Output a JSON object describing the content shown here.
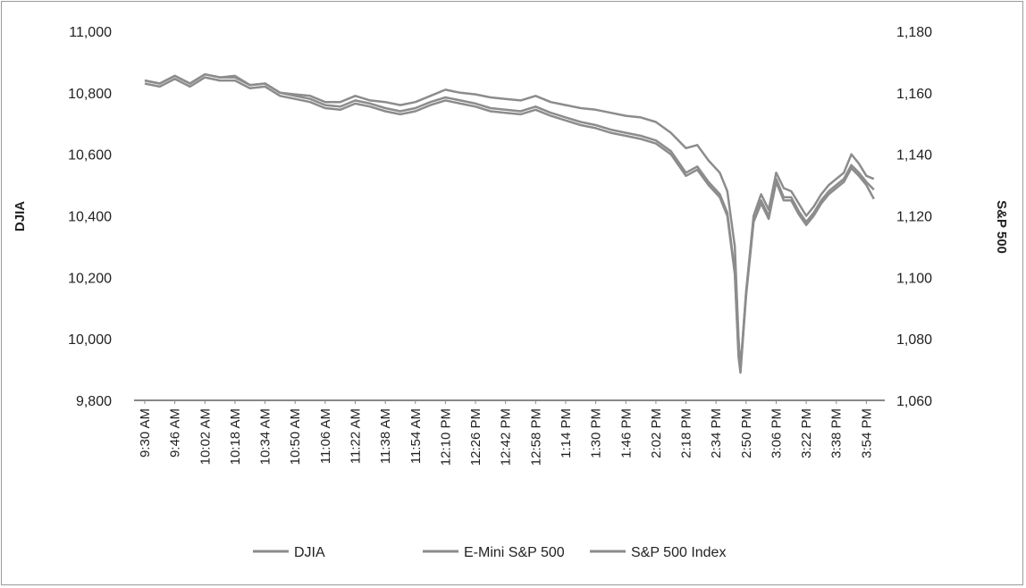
{
  "chart_data": {
    "type": "line",
    "title": "",
    "left_axis_label": "DJIA",
    "right_axis_label": "S&P 500",
    "left_ylim": [
      9800,
      11000
    ],
    "right_ylim": [
      1060,
      1180
    ],
    "left_ticks": [
      "9,800",
      "10,000",
      "10,200",
      "10,400",
      "10,600",
      "10,800",
      "11,000"
    ],
    "right_ticks": [
      "1,060",
      "1,080",
      "1,100",
      "1,120",
      "1,140",
      "1,160",
      "1,180"
    ],
    "x_ticks": [
      "9:30 AM",
      "9:46 AM",
      "10:02 AM",
      "10:18 AM",
      "10:34 AM",
      "10:50 AM",
      "11:06 AM",
      "11:22 AM",
      "11:38 AM",
      "11:54 AM",
      "12:10 PM",
      "12:26 PM",
      "12:42 PM",
      "12:58 PM",
      "1:14 PM",
      "1:30 PM",
      "1:46 PM",
      "2:02 PM",
      "2:18 PM",
      "2:34 PM",
      "2:50 PM",
      "3:06 PM",
      "3:22 PM",
      "3:38 PM",
      "3:54 PM"
    ],
    "grid": false,
    "legend_position": "bottom",
    "line_color": "#8c8c8c",
    "series": [
      {
        "name": "DJIA",
        "axis": "left",
        "points": [
          [
            "9:30 AM",
            10840
          ],
          [
            "9:38 AM",
            10830
          ],
          [
            "9:46 AM",
            10855
          ],
          [
            "9:54 AM",
            10830
          ],
          [
            "10:02 AM",
            10860
          ],
          [
            "10:10 AM",
            10850
          ],
          [
            "10:18 AM",
            10855
          ],
          [
            "10:26 AM",
            10825
          ],
          [
            "10:34 AM",
            10830
          ],
          [
            "10:42 AM",
            10800
          ],
          [
            "10:50 AM",
            10795
          ],
          [
            "10:58 AM",
            10790
          ],
          [
            "11:06 AM",
            10770
          ],
          [
            "11:14 AM",
            10770
          ],
          [
            "11:22 AM",
            10790
          ],
          [
            "11:30 AM",
            10775
          ],
          [
            "11:38 AM",
            10770
          ],
          [
            "11:46 AM",
            10760
          ],
          [
            "11:54 AM",
            10770
          ],
          [
            "12:02 PM",
            10790
          ],
          [
            "12:10 PM",
            10810
          ],
          [
            "12:18 PM",
            10800
          ],
          [
            "12:26 PM",
            10795
          ],
          [
            "12:34 PM",
            10785
          ],
          [
            "12:42 PM",
            10780
          ],
          [
            "12:50 PM",
            10775
          ],
          [
            "12:58 PM",
            10790
          ],
          [
            "1:06 PM",
            10770
          ],
          [
            "1:14 PM",
            10760
          ],
          [
            "1:22 PM",
            10750
          ],
          [
            "1:30 PM",
            10745
          ],
          [
            "1:38 PM",
            10735
          ],
          [
            "1:46 PM",
            10725
          ],
          [
            "1:54 PM",
            10720
          ],
          [
            "2:02 PM",
            10705
          ],
          [
            "2:10 PM",
            10670
          ],
          [
            "2:18 PM",
            10620
          ],
          [
            "2:24 PM",
            10630
          ],
          [
            "2:30 PM",
            10580
          ],
          [
            "2:36 PM",
            10540
          ],
          [
            "2:40 PM",
            10480
          ],
          [
            "2:44 PM",
            10300
          ],
          [
            "2:46 PM",
            10000
          ],
          [
            "2:47 PM",
            9900
          ],
          [
            "2:50 PM",
            10150
          ],
          [
            "2:54 PM",
            10400
          ],
          [
            "2:58 PM",
            10470
          ],
          [
            "3:02 PM",
            10420
          ],
          [
            "3:06 PM",
            10540
          ],
          [
            "3:10 PM",
            10490
          ],
          [
            "3:14 PM",
            10480
          ],
          [
            "3:18 PM",
            10440
          ],
          [
            "3:22 PM",
            10400
          ],
          [
            "3:26 PM",
            10430
          ],
          [
            "3:30 PM",
            10470
          ],
          [
            "3:34 PM",
            10500
          ],
          [
            "3:38 PM",
            10520
          ],
          [
            "3:42 PM",
            10540
          ],
          [
            "3:46 PM",
            10600
          ],
          [
            "3:50 PM",
            10570
          ],
          [
            "3:54 PM",
            10530
          ],
          [
            "3:58 PM",
            10520
          ]
        ]
      },
      {
        "name": "E-Mini S&P 500",
        "axis": "right",
        "points": [
          [
            "9:30 AM",
            1164
          ],
          [
            "9:38 AM",
            1163
          ],
          [
            "9:46 AM",
            1165.5
          ],
          [
            "9:54 AM",
            1163
          ],
          [
            "10:02 AM",
            1166
          ],
          [
            "10:10 AM",
            1165
          ],
          [
            "10:18 AM",
            1165
          ],
          [
            "10:26 AM",
            1162.5
          ],
          [
            "10:34 AM",
            1163
          ],
          [
            "10:42 AM",
            1160
          ],
          [
            "10:50 AM",
            1159
          ],
          [
            "10:58 AM",
            1158
          ],
          [
            "11:06 AM",
            1156
          ],
          [
            "11:14 AM",
            1155.5
          ],
          [
            "11:22 AM",
            1157.5
          ],
          [
            "11:30 AM",
            1156.5
          ],
          [
            "11:38 AM",
            1155
          ],
          [
            "11:46 AM",
            1154
          ],
          [
            "11:54 AM",
            1155
          ],
          [
            "12:02 PM",
            1157
          ],
          [
            "12:10 PM",
            1158.5
          ],
          [
            "12:18 PM",
            1157.5
          ],
          [
            "12:26 PM",
            1156.5
          ],
          [
            "12:34 PM",
            1155
          ],
          [
            "12:42 PM",
            1154.5
          ],
          [
            "12:50 PM",
            1154
          ],
          [
            "12:58 PM",
            1155.5
          ],
          [
            "1:06 PM",
            1153.5
          ],
          [
            "1:14 PM",
            1152
          ],
          [
            "1:22 PM",
            1150.5
          ],
          [
            "1:30 PM",
            1149.5
          ],
          [
            "1:38 PM",
            1148
          ],
          [
            "1:46 PM",
            1147
          ],
          [
            "1:54 PM",
            1146
          ],
          [
            "2:02 PM",
            1144.5
          ],
          [
            "2:10 PM",
            1141
          ],
          [
            "2:18 PM",
            1134
          ],
          [
            "2:24 PM",
            1136
          ],
          [
            "2:30 PM",
            1131
          ],
          [
            "2:36 PM",
            1127
          ],
          [
            "2:40 PM",
            1121
          ],
          [
            "2:44 PM",
            1102
          ],
          [
            "2:46 PM",
            1075
          ],
          [
            "2:47 PM",
            1070
          ],
          [
            "2:50 PM",
            1095
          ],
          [
            "2:54 PM",
            1119
          ],
          [
            "2:58 PM",
            1125
          ],
          [
            "3:02 PM",
            1120
          ],
          [
            "3:06 PM",
            1132
          ],
          [
            "3:10 PM",
            1126
          ],
          [
            "3:14 PM",
            1126
          ],
          [
            "3:18 PM",
            1121.5
          ],
          [
            "3:22 PM",
            1118
          ],
          [
            "3:26 PM",
            1121
          ],
          [
            "3:30 PM",
            1125
          ],
          [
            "3:34 PM",
            1128
          ],
          [
            "3:38 PM",
            1130
          ],
          [
            "3:42 PM",
            1132
          ],
          [
            "3:46 PM",
            1136.5
          ],
          [
            "3:50 PM",
            1134
          ],
          [
            "3:54 PM",
            1131
          ],
          [
            "3:58 PM",
            1128.5
          ]
        ]
      },
      {
        "name": "S&P 500 Index",
        "axis": "right",
        "points": [
          [
            "9:30 AM",
            1163
          ],
          [
            "9:38 AM",
            1162
          ],
          [
            "9:46 AM",
            1164.5
          ],
          [
            "9:54 AM",
            1162
          ],
          [
            "10:02 AM",
            1165
          ],
          [
            "10:10 AM",
            1164
          ],
          [
            "10:18 AM",
            1164
          ],
          [
            "10:26 AM",
            1161.5
          ],
          [
            "10:34 AM",
            1162
          ],
          [
            "10:42 AM",
            1159
          ],
          [
            "10:50 AM",
            1158
          ],
          [
            "10:58 AM",
            1157
          ],
          [
            "11:06 AM",
            1155
          ],
          [
            "11:14 AM",
            1154.5
          ],
          [
            "11:22 AM",
            1156.5
          ],
          [
            "11:30 AM",
            1155.5
          ],
          [
            "11:38 AM",
            1154
          ],
          [
            "11:46 AM",
            1153
          ],
          [
            "11:54 AM",
            1154
          ],
          [
            "12:02 PM",
            1156
          ],
          [
            "12:10 PM",
            1157.5
          ],
          [
            "12:18 PM",
            1156.5
          ],
          [
            "12:26 PM",
            1155.5
          ],
          [
            "12:34 PM",
            1154
          ],
          [
            "12:42 PM",
            1153.5
          ],
          [
            "12:50 PM",
            1153
          ],
          [
            "12:58 PM",
            1154.5
          ],
          [
            "1:06 PM",
            1152.5
          ],
          [
            "1:14 PM",
            1151
          ],
          [
            "1:22 PM",
            1149.5
          ],
          [
            "1:30 PM",
            1148.5
          ],
          [
            "1:38 PM",
            1147
          ],
          [
            "1:46 PM",
            1146
          ],
          [
            "1:54 PM",
            1145
          ],
          [
            "2:02 PM",
            1143.5
          ],
          [
            "2:10 PM",
            1140
          ],
          [
            "2:18 PM",
            1133
          ],
          [
            "2:24 PM",
            1135
          ],
          [
            "2:30 PM",
            1130
          ],
          [
            "2:36 PM",
            1126
          ],
          [
            "2:40 PM",
            1120
          ],
          [
            "2:44 PM",
            1101
          ],
          [
            "2:46 PM",
            1074
          ],
          [
            "2:47 PM",
            1069
          ],
          [
            "2:50 PM",
            1094
          ],
          [
            "2:54 PM",
            1118
          ],
          [
            "2:58 PM",
            1124
          ],
          [
            "3:02 PM",
            1119
          ],
          [
            "3:06 PM",
            1131
          ],
          [
            "3:10 PM",
            1125
          ],
          [
            "3:14 PM",
            1125
          ],
          [
            "3:18 PM",
            1120.5
          ],
          [
            "3:22 PM",
            1117
          ],
          [
            "3:26 PM",
            1120
          ],
          [
            "3:30 PM",
            1124
          ],
          [
            "3:34 PM",
            1127
          ],
          [
            "3:38 PM",
            1129
          ],
          [
            "3:42 PM",
            1131
          ],
          [
            "3:46 PM",
            1135.5
          ],
          [
            "3:50 PM",
            1133
          ],
          [
            "3:54 PM",
            1130
          ],
          [
            "3:58 PM",
            1125.5
          ]
        ]
      }
    ]
  }
}
